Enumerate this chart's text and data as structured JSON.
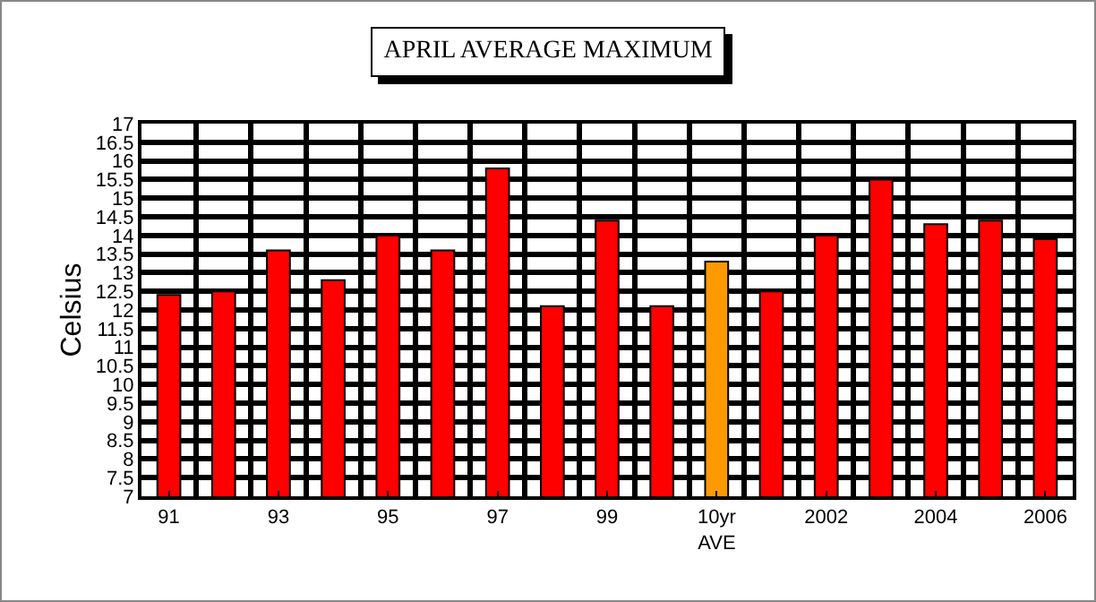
{
  "chart_data": {
    "type": "bar",
    "title": "APRIL AVERAGE MAXIMUM",
    "ylabel": "Celsius",
    "categories": [
      "91",
      null,
      "93",
      null,
      "95",
      null,
      "97",
      null,
      "99",
      null,
      "10yr\nAVE",
      null,
      "2002",
      null,
      "2004",
      null,
      "2006"
    ],
    "values": [
      12.4,
      12.5,
      13.6,
      12.8,
      14.0,
      13.6,
      15.8,
      12.1,
      14.4,
      12.1,
      13.3,
      12.5,
      14.0,
      15.5,
      14.3,
      14.4,
      13.9
    ],
    "colors": [
      "#ff0000",
      "#ff0000",
      "#ff0000",
      "#ff0000",
      "#ff0000",
      "#ff0000",
      "#ff0000",
      "#ff0000",
      "#ff0000",
      "#ff0000",
      "#ff9900",
      "#ff0000",
      "#ff0000",
      "#ff0000",
      "#ff0000",
      "#ff0000",
      "#ff0000"
    ],
    "ylim": [
      7,
      17
    ],
    "yticks": [
      7,
      7.5,
      8,
      8.5,
      9,
      9.5,
      10,
      10.5,
      11,
      11.5,
      12,
      12.5,
      13,
      13.5,
      14,
      14.5,
      15,
      15.5,
      16,
      16.5,
      17
    ],
    "grid": true
  }
}
